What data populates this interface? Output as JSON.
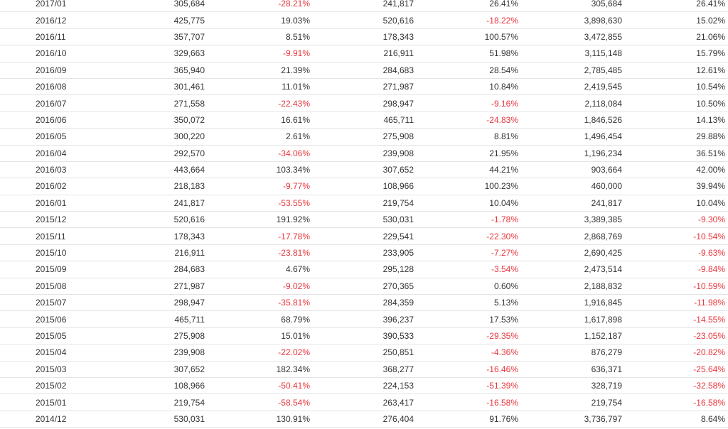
{
  "colors": {
    "text": "#333333",
    "negative": "#e8363d",
    "row_border": "#e4e4e4"
  },
  "rows": [
    [
      "2017/01",
      "305,684",
      "-28.21%",
      "241,817",
      "26.41%",
      "305,684",
      "26.41%"
    ],
    [
      "2016/12",
      "425,775",
      "19.03%",
      "520,616",
      "-18.22%",
      "3,898,630",
      "15.02%"
    ],
    [
      "2016/11",
      "357,707",
      "8.51%",
      "178,343",
      "100.57%",
      "3,472,855",
      "21.06%"
    ],
    [
      "2016/10",
      "329,663",
      "-9.91%",
      "216,911",
      "51.98%",
      "3,115,148",
      "15.79%"
    ],
    [
      "2016/09",
      "365,940",
      "21.39%",
      "284,683",
      "28.54%",
      "2,785,485",
      "12.61%"
    ],
    [
      "2016/08",
      "301,461",
      "11.01%",
      "271,987",
      "10.84%",
      "2,419,545",
      "10.54%"
    ],
    [
      "2016/07",
      "271,558",
      "-22.43%",
      "298,947",
      "-9.16%",
      "2,118,084",
      "10.50%"
    ],
    [
      "2016/06",
      "350,072",
      "16.61%",
      "465,711",
      "-24.83%",
      "1,846,526",
      "14.13%"
    ],
    [
      "2016/05",
      "300,220",
      "2.61%",
      "275,908",
      "8.81%",
      "1,496,454",
      "29.88%"
    ],
    [
      "2016/04",
      "292,570",
      "-34.06%",
      "239,908",
      "21.95%",
      "1,196,234",
      "36.51%"
    ],
    [
      "2016/03",
      "443,664",
      "103.34%",
      "307,652",
      "44.21%",
      "903,664",
      "42.00%"
    ],
    [
      "2016/02",
      "218,183",
      "-9.77%",
      "108,966",
      "100.23%",
      "460,000",
      "39.94%"
    ],
    [
      "2016/01",
      "241,817",
      "-53.55%",
      "219,754",
      "10.04%",
      "241,817",
      "10.04%"
    ],
    [
      "2015/12",
      "520,616",
      "191.92%",
      "530,031",
      "-1.78%",
      "3,389,385",
      "-9.30%"
    ],
    [
      "2015/11",
      "178,343",
      "-17.78%",
      "229,541",
      "-22.30%",
      "2,868,769",
      "-10.54%"
    ],
    [
      "2015/10",
      "216,911",
      "-23.81%",
      "233,905",
      "-7.27%",
      "2,690,425",
      "-9.63%"
    ],
    [
      "2015/09",
      "284,683",
      "4.67%",
      "295,128",
      "-3.54%",
      "2,473,514",
      "-9.84%"
    ],
    [
      "2015/08",
      "271,987",
      "-9.02%",
      "270,365",
      "0.60%",
      "2,188,832",
      "-10.59%"
    ],
    [
      "2015/07",
      "298,947",
      "-35.81%",
      "284,359",
      "5.13%",
      "1,916,845",
      "-11.98%"
    ],
    [
      "2015/06",
      "465,711",
      "68.79%",
      "396,237",
      "17.53%",
      "1,617,898",
      "-14.55%"
    ],
    [
      "2015/05",
      "275,908",
      "15.01%",
      "390,533",
      "-29.35%",
      "1,152,187",
      "-23.05%"
    ],
    [
      "2015/04",
      "239,908",
      "-22.02%",
      "250,851",
      "-4.36%",
      "876,279",
      "-20.82%"
    ],
    [
      "2015/03",
      "307,652",
      "182.34%",
      "368,277",
      "-16.46%",
      "636,371",
      "-25.64%"
    ],
    [
      "2015/02",
      "108,966",
      "-50.41%",
      "224,153",
      "-51.39%",
      "328,719",
      "-32.58%"
    ],
    [
      "2015/01",
      "219,754",
      "-58.54%",
      "263,417",
      "-16.58%",
      "219,754",
      "-16.58%"
    ],
    [
      "2014/12",
      "530,031",
      "130.91%",
      "276,404",
      "91.76%",
      "3,736,797",
      "8.64%"
    ]
  ]
}
